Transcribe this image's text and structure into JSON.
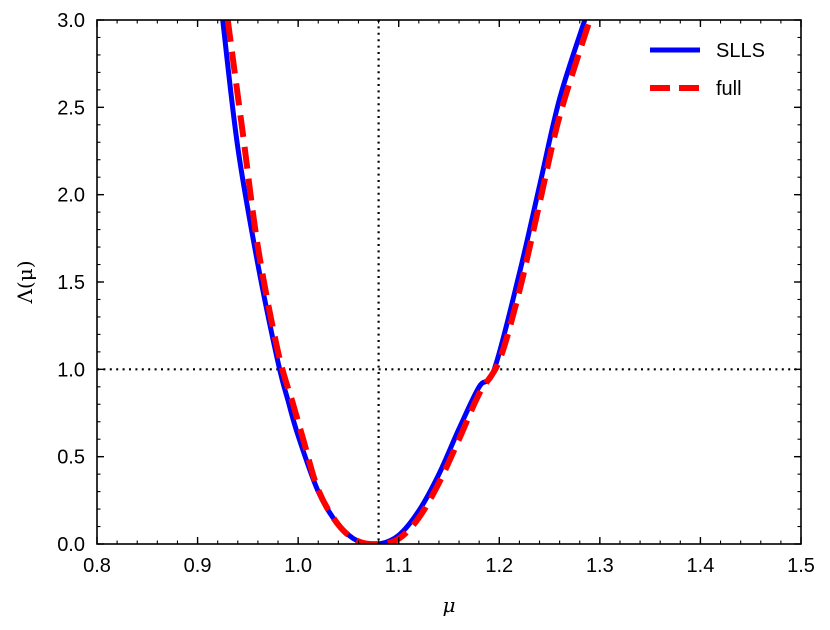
{
  "chart_data": {
    "type": "line",
    "xlabel": "μ",
    "ylabel": "Λ(μ)",
    "xlim": [
      0.8,
      1.5
    ],
    "ylim": [
      0.0,
      3.0
    ],
    "xticks": [
      0.8,
      0.9,
      1.0,
      1.1,
      1.2,
      1.3,
      1.4,
      1.5
    ],
    "xtick_labels": [
      "0.8",
      "0.9",
      "1.0",
      "1.1",
      "1.2",
      "1.3",
      "1.4",
      "1.5"
    ],
    "yticks": [
      0.0,
      0.5,
      1.0,
      1.5,
      2.0,
      2.5,
      3.0
    ],
    "ytick_labels": [
      "0.0",
      "0.5",
      "1.0",
      "1.5",
      "2.0",
      "2.5",
      "3.0"
    ],
    "grid": false,
    "legend_position": "top-right",
    "reference_lines": {
      "vertical_x": 1.08,
      "horizontal_y": 1.0
    },
    "series": [
      {
        "name": "SLLS",
        "color": "#0000ff",
        "style": "solid",
        "x": [
          0.925,
          0.94,
          0.96,
          0.98,
          0.99,
          1.0,
          1.02,
          1.04,
          1.06,
          1.08,
          1.1,
          1.12,
          1.14,
          1.16,
          1.18,
          1.195,
          1.22,
          1.24,
          1.26,
          1.285
        ],
        "y": [
          3.0,
          2.27,
          1.6,
          1.04,
          0.82,
          0.62,
          0.3,
          0.11,
          0.015,
          0.0,
          0.05,
          0.19,
          0.4,
          0.66,
          0.9,
          1.0,
          1.55,
          2.05,
          2.55,
          3.0
        ]
      },
      {
        "name": "full",
        "color": "#ff0000",
        "style": "dashed",
        "x": [
          0.93,
          0.945,
          0.96,
          0.98,
          0.995,
          1.005,
          1.02,
          1.04,
          1.06,
          1.08,
          1.1,
          1.12,
          1.14,
          1.16,
          1.18,
          1.2,
          1.22,
          1.24,
          1.26,
          1.29
        ],
        "y": [
          3.0,
          2.35,
          1.7,
          1.1,
          0.8,
          0.6,
          0.31,
          0.11,
          0.015,
          0.0,
          0.03,
          0.15,
          0.35,
          0.6,
          0.86,
          1.05,
          1.45,
          1.95,
          2.45,
          3.0
        ]
      }
    ]
  }
}
